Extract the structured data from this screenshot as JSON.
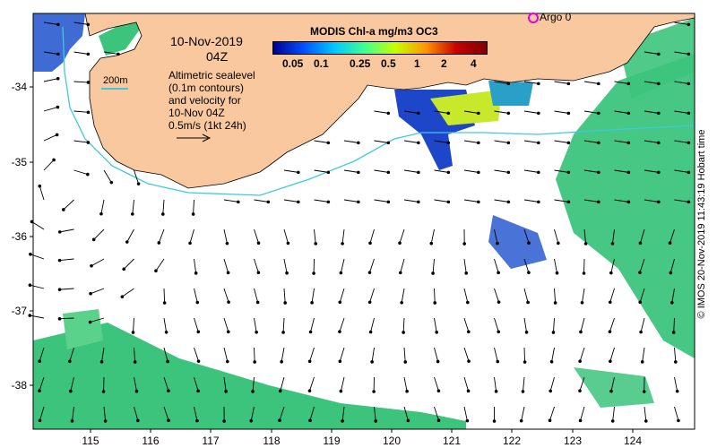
{
  "map": {
    "date_label": "10-Nov-2019",
    "time_label": "04Z",
    "info_lines": [
      "Altimetric sealevel",
      "(0.1m contours)",
      "and velocity for",
      "10-Nov 04Z",
      "0.5m/s (1kt 24h)"
    ],
    "contour_label": "200m",
    "argo_label": "Argo 0",
    "credit": "© IMOS 20-Nov-2019 11:43:19 Hobart time",
    "lon_range": [
      114,
      125
    ],
    "lat_range": [
      -38.5,
      -33.1
    ],
    "x_ticks": [
      "115",
      "116",
      "117",
      "118",
      "119",
      "120",
      "121",
      "122",
      "123",
      "124"
    ],
    "y_ticks": [
      "-34",
      "-35",
      "-36",
      "-37",
      "-38"
    ],
    "colors": {
      "land": "#f9c89f",
      "coast": "#000000",
      "contour_200m": "#40c8e0",
      "argo": "#e000e0",
      "chl_low": "#2a5bd0",
      "chl_mid": "#3cc47c",
      "chl_high": "#c8e82c"
    }
  },
  "colorbar": {
    "title": "MODIS Chl-a mg/m3 OC3",
    "labels": [
      "0.05",
      "0.1",
      "0.25",
      "0.5",
      "1",
      "2",
      "4"
    ],
    "colors": [
      "#00008f",
      "#0050ff",
      "#00c8ff",
      "#40ff90",
      "#c8ff00",
      "#ff9600",
      "#c80000",
      "#800000"
    ]
  }
}
